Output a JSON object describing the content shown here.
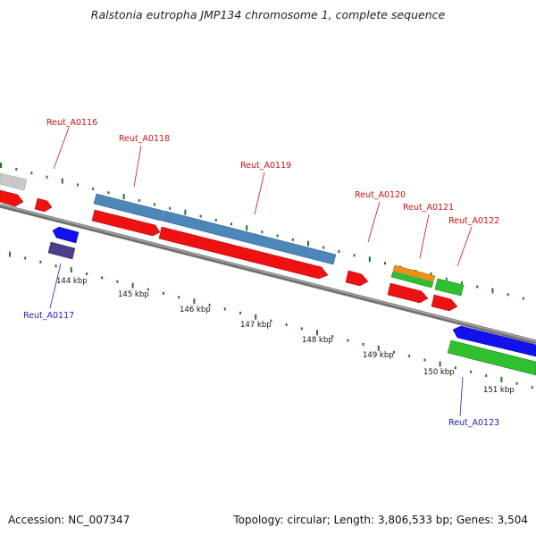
{
  "title": "Ralstonia eutropha JMP134 chromosome 1, complete sequence",
  "footer": {
    "accession": "Accession: NC_007347",
    "summary": "Topology: circular; Length: 3,806,533 bp; Genes: 3,504"
  },
  "scale_labels": [
    "144 kbp",
    "145 kbp",
    "146 kbp",
    "147 kbp",
    "148 kbp",
    "149 kbp",
    "150 kbp",
    "151 kbp"
  ],
  "gene_labels": {
    "forward": [
      "Reut_A0116",
      "Reut_A0118",
      "Reut_A0119",
      "Reut_A0120",
      "Reut_A0121",
      "Reut_A0122"
    ],
    "reverse": [
      "Reut_A0117",
      "Reut_A0123"
    ]
  },
  "colors": {
    "backbone": "#808080",
    "cds": "#ee1111",
    "gene_light_blue": "#4d86b8",
    "gene_gray": "#c8c8c8",
    "gene_blue": "#1111ee",
    "gene_purple": "#4a3f8a",
    "gene_green": "#2fc02f",
    "gene_orange": "#f09010",
    "tick": "#227722",
    "label_forward": "#cc1111",
    "label_reverse": "#2222bb"
  }
}
